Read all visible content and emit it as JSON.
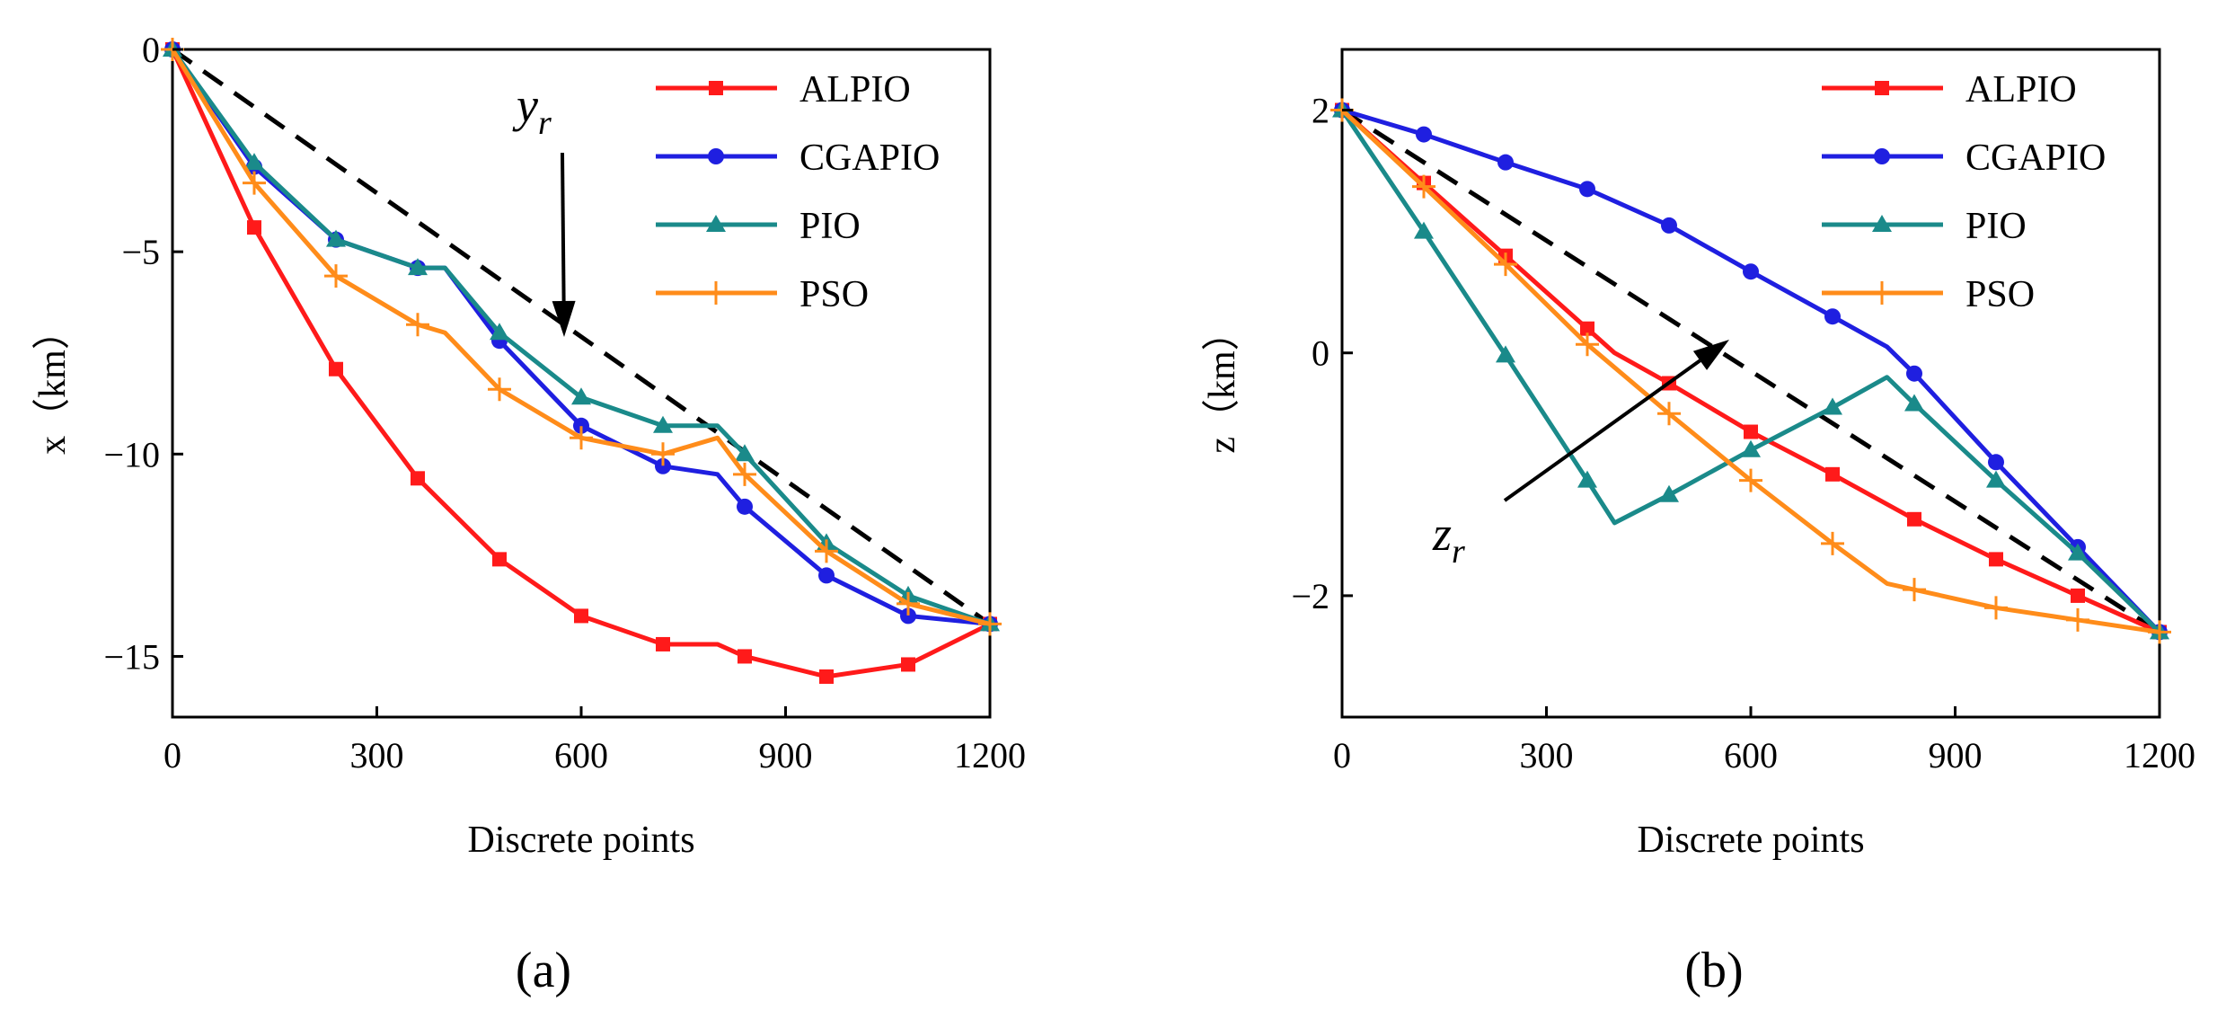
{
  "panel_labels": [
    "(a)",
    "(b)"
  ],
  "colors": {
    "ALPIO": "#ff1a1a",
    "CGAPIO": "#1f1fe0",
    "PIO": "#1a8a8a",
    "PSO": "#ff8c1a",
    "reference": "#000000"
  },
  "chart_data": [
    {
      "type": "line",
      "panel": "(a)",
      "xlabel": "Discrete points",
      "ylabel": "x（km）",
      "xlim": [
        0,
        1200
      ],
      "ylim": [
        -16.5,
        0
      ],
      "xticks": [
        0,
        300,
        600,
        900,
        1200
      ],
      "yticks": [
        0,
        -5,
        -10,
        -15
      ],
      "xtick_labels": [
        "0",
        "300",
        "600",
        "900",
        "1200"
      ],
      "ytick_labels": [
        "0",
        "−5",
        "−10",
        "−15"
      ],
      "grid": false,
      "legend_position": "top-right",
      "annotation": {
        "text": "y",
        "subscript": "r"
      },
      "reference": {
        "x": [
          0,
          1200
        ],
        "y": [
          0,
          -14.2
        ]
      },
      "series": [
        {
          "name": "ALPIO",
          "marker": "square",
          "x": [
            0,
            120,
            240,
            360,
            480,
            600,
            720,
            800,
            840,
            960,
            1080,
            1200
          ],
          "y": [
            0,
            -4.4,
            -7.9,
            -10.6,
            -12.6,
            -14.0,
            -14.7,
            -14.7,
            -15.0,
            -15.5,
            -15.2,
            -14.2
          ]
        },
        {
          "name": "CGAPIO",
          "marker": "circle",
          "x": [
            0,
            120,
            240,
            360,
            400,
            480,
            600,
            720,
            800,
            840,
            960,
            1080,
            1200
          ],
          "y": [
            0,
            -2.9,
            -4.7,
            -5.4,
            -5.4,
            -7.2,
            -9.3,
            -10.3,
            -10.5,
            -11.3,
            -13.0,
            -14.0,
            -14.2
          ]
        },
        {
          "name": "PIO",
          "marker": "triangle",
          "x": [
            0,
            120,
            240,
            360,
            400,
            480,
            600,
            720,
            800,
            840,
            960,
            1080,
            1200
          ],
          "y": [
            0,
            -2.8,
            -4.7,
            -5.4,
            -5.4,
            -7.0,
            -8.6,
            -9.3,
            -9.3,
            -10.0,
            -12.2,
            -13.5,
            -14.2
          ]
        },
        {
          "name": "PSO",
          "marker": "plus",
          "x": [
            0,
            120,
            240,
            360,
            400,
            480,
            600,
            720,
            800,
            840,
            960,
            1080,
            1200
          ],
          "y": [
            0,
            -3.3,
            -5.6,
            -6.8,
            -7.0,
            -8.4,
            -9.6,
            -10.0,
            -9.6,
            -10.5,
            -12.4,
            -13.7,
            -14.2
          ]
        }
      ]
    },
    {
      "type": "line",
      "panel": "(b)",
      "xlabel": "Discrete points",
      "ylabel": "z（km）",
      "xlim": [
        0,
        1200
      ],
      "ylim": [
        -3,
        2.5
      ],
      "xticks": [
        0,
        300,
        600,
        900,
        1200
      ],
      "yticks": [
        2,
        0,
        -2
      ],
      "xtick_labels": [
        "0",
        "300",
        "600",
        "900",
        "1200"
      ],
      "ytick_labels": [
        "2",
        "0",
        "−2"
      ],
      "grid": false,
      "legend_position": "top-right",
      "annotation": {
        "text": "z",
        "subscript": "r"
      },
      "reference": {
        "x": [
          0,
          1200
        ],
        "y": [
          2.0,
          -2.3
        ]
      },
      "series": [
        {
          "name": "ALPIO",
          "marker": "square",
          "x": [
            0,
            120,
            240,
            360,
            400,
            480,
            600,
            720,
            840,
            960,
            1080,
            1200
          ],
          "y": [
            2.0,
            1.4,
            0.8,
            0.2,
            0.0,
            -0.25,
            -0.65,
            -1.0,
            -1.37,
            -1.7,
            -2.0,
            -2.3
          ]
        },
        {
          "name": "CGAPIO",
          "marker": "circle",
          "x": [
            0,
            120,
            240,
            360,
            480,
            600,
            720,
            800,
            840,
            960,
            1080,
            1200
          ],
          "y": [
            2.0,
            1.8,
            1.57,
            1.35,
            1.05,
            0.67,
            0.3,
            0.05,
            -0.17,
            -0.9,
            -1.6,
            -2.3
          ]
        },
        {
          "name": "PIO",
          "marker": "triangle",
          "x": [
            0,
            120,
            240,
            360,
            400,
            480,
            600,
            720,
            800,
            840,
            960,
            1080,
            1200
          ],
          "y": [
            2.0,
            1.0,
            -0.02,
            -1.05,
            -1.4,
            -1.17,
            -0.8,
            -0.45,
            -0.2,
            -0.42,
            -1.05,
            -1.65,
            -2.3
          ]
        },
        {
          "name": "PSO",
          "marker": "plus",
          "x": [
            0,
            120,
            240,
            360,
            480,
            600,
            720,
            800,
            840,
            960,
            1080,
            1200
          ],
          "y": [
            2.0,
            1.37,
            0.73,
            0.07,
            -0.5,
            -1.05,
            -1.57,
            -1.9,
            -1.95,
            -2.1,
            -2.2,
            -2.3
          ]
        }
      ]
    }
  ]
}
